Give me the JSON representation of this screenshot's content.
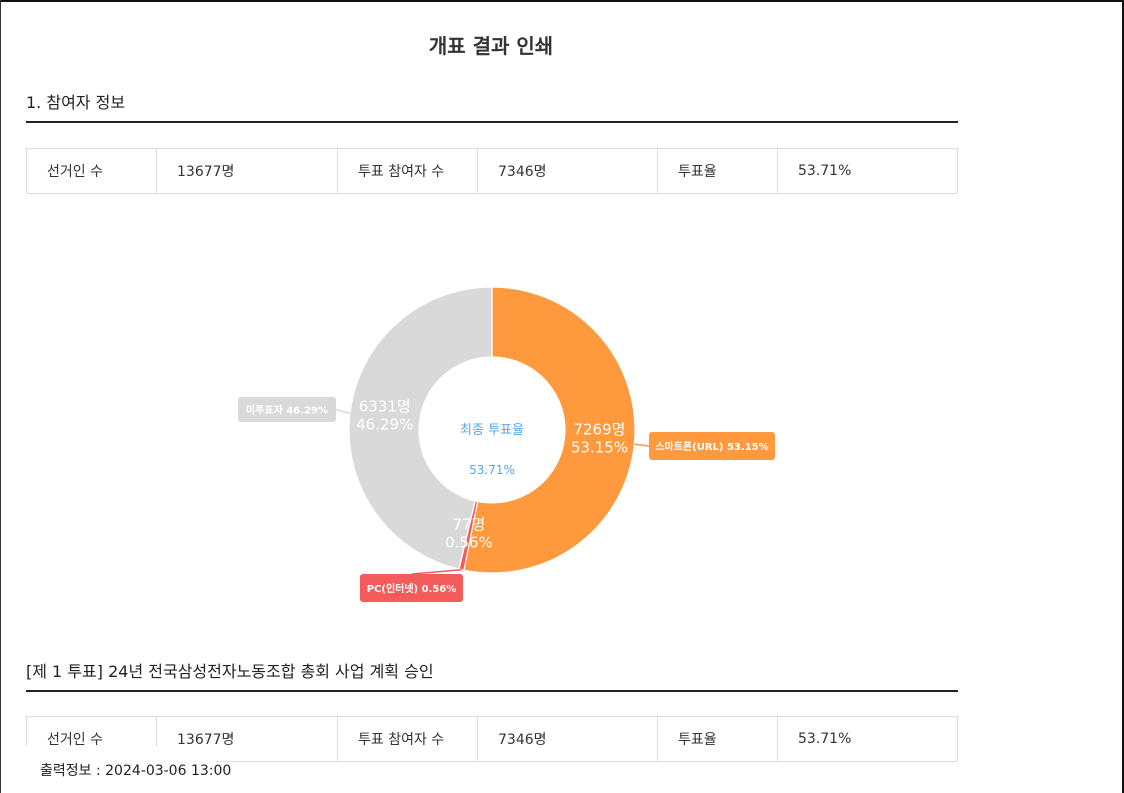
{
  "page_title": "개표 결과 인쇄",
  "section1": {
    "title": "1. 참여자 정보",
    "cells": [
      "선거인 수",
      "13677명",
      "투표 참여자 수",
      "7346명",
      "투표율",
      "53.71%"
    ]
  },
  "chart_data": {
    "type": "pie",
    "center_title": "최종 투표율",
    "center_value": "53.71%",
    "slices": [
      {
        "name": "스마트폰(URL)",
        "count": 7269,
        "percent": 53.15,
        "count_label": "7269명",
        "percent_label": "53.15%",
        "legend": "스마트폰(URL) 53.15%",
        "color": "#fe993e"
      },
      {
        "name": "PC(인터넷)",
        "count": 77,
        "percent": 0.56,
        "count_label": "77명",
        "percent_label": "0.56%",
        "legend": "PC(인터넷) 0.56%",
        "color": "#f45b5b"
      },
      {
        "name": "미투표자",
        "count": 6331,
        "percent": 46.29,
        "count_label": "6331명",
        "percent_label": "46.29%",
        "legend": "미투표자 46.29%",
        "color": "#d9d9d9"
      }
    ]
  },
  "section2": {
    "title": "[제 1 투표] 24년 전국삼성전자노동조합 총회 사업 계획 승인",
    "cells": [
      "선거인 수",
      "13677명",
      "투표 참여자 수",
      "7346명",
      "투표율",
      "53.71%"
    ]
  },
  "footer": {
    "text": "출력정보 : 2024-03-06 13:00"
  },
  "colors": {
    "accent_blue": "#5aa5e6",
    "smartphone": "#fe993e",
    "pc": "#f45b5b",
    "nonvoter": "#d9d9d9"
  }
}
